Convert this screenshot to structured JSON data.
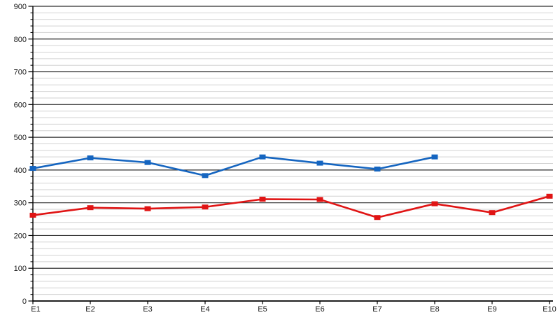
{
  "chart_data": {
    "type": "line",
    "title": "",
    "xlabel": "",
    "ylabel": "",
    "categories": [
      "E1",
      "E2",
      "E3",
      "E4",
      "E5",
      "E6",
      "E7",
      "E8",
      "E9",
      "E10"
    ],
    "series": [
      {
        "name": "series-blue",
        "color": "#1565c0",
        "marker": "square",
        "values": [
          405,
          437,
          423,
          383,
          440,
          421,
          403,
          440,
          null,
          null
        ]
      },
      {
        "name": "series-red",
        "color": "#e01414",
        "marker": "square",
        "values": [
          262,
          285,
          282,
          287,
          311,
          310,
          255,
          297,
          270,
          320
        ]
      }
    ],
    "ylim": [
      0,
      900
    ],
    "y_major_step": 100,
    "y_minor_step": 20,
    "y_tick_labels": [
      "0",
      "100",
      "200",
      "300",
      "400",
      "500",
      "600",
      "700",
      "800",
      "900"
    ],
    "grid": true,
    "legend_position": "none"
  },
  "colors": {
    "background": "#ffffff",
    "major_grid": "#2f2f2f",
    "minor_grid": "#d2d2d2",
    "axis": "#000000",
    "label_text": "#1a1a1a"
  }
}
